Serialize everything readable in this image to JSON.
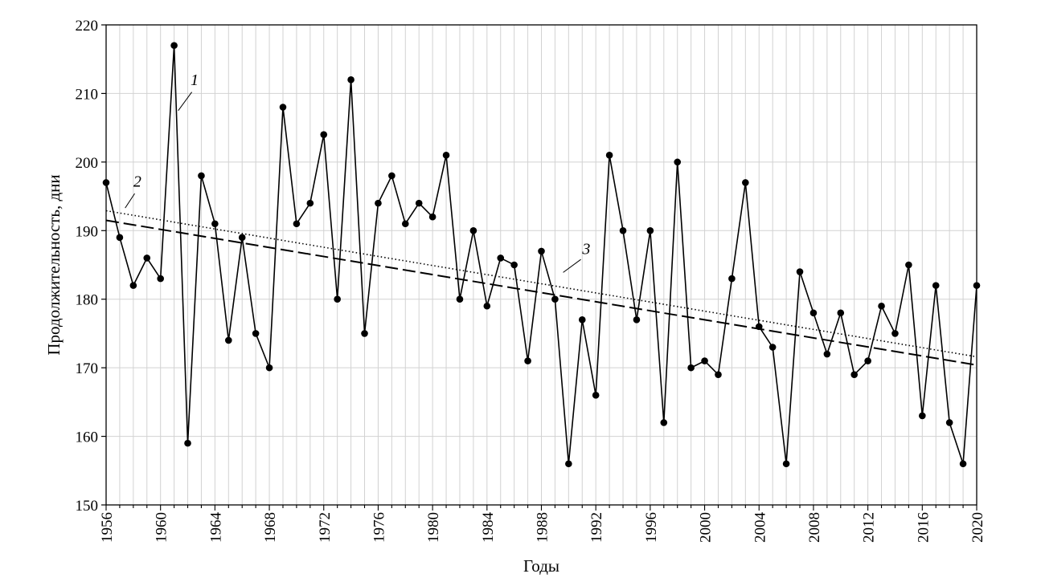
{
  "chart_data": {
    "type": "line",
    "xlabel": "Годы",
    "ylabel": "Продолжительность, дни",
    "xlim": [
      1956,
      2020
    ],
    "ylim": [
      150,
      220
    ],
    "x_ticks": [
      1956,
      1960,
      1964,
      1968,
      1972,
      1976,
      1980,
      1984,
      1988,
      1992,
      1996,
      2000,
      2004,
      2008,
      2012,
      2016,
      2020
    ],
    "y_ticks": [
      150,
      160,
      170,
      180,
      190,
      200,
      210,
      220
    ],
    "grid": true,
    "x": [
      1956,
      1957,
      1958,
      1959,
      1960,
      1961,
      1962,
      1963,
      1964,
      1965,
      1966,
      1967,
      1968,
      1969,
      1970,
      1971,
      1972,
      1973,
      1974,
      1975,
      1976,
      1977,
      1978,
      1979,
      1980,
      1981,
      1982,
      1983,
      1984,
      1985,
      1986,
      1987,
      1988,
      1989,
      1990,
      1991,
      1992,
      1993,
      1994,
      1995,
      1996,
      1997,
      1998,
      1999,
      2000,
      2001,
      2002,
      2003,
      2004,
      2005,
      2006,
      2007,
      2008,
      2009,
      2010,
      2011,
      2012,
      2013,
      2014,
      2015,
      2016,
      2017,
      2018,
      2019,
      2020
    ],
    "series": [
      {
        "label": "1",
        "style": "solid-with-markers",
        "values": [
          197,
          189,
          182,
          186,
          183,
          217,
          159,
          198,
          191,
          174,
          189,
          175,
          170,
          208,
          191,
          194,
          204,
          180,
          212,
          175,
          194,
          198,
          191,
          194,
          192,
          201,
          180,
          190,
          179,
          186,
          185,
          171,
          187,
          180,
          156,
          177,
          166,
          201,
          190,
          177,
          190,
          162,
          200,
          170,
          171,
          169,
          183,
          197,
          176,
          173,
          156,
          184,
          178,
          172,
          178,
          169,
          171,
          179,
          175,
          185,
          163,
          182,
          162,
          156,
          182
        ]
      },
      {
        "label": "2",
        "style": "dotted",
        "values": [
          192.9,
          171.6
        ],
        "x": [
          1956,
          2020
        ]
      },
      {
        "label": "3",
        "style": "dashed",
        "values": [
          191.5,
          170.4
        ],
        "x": [
          1956,
          2020
        ]
      }
    ],
    "annotations": [
      "1",
      "2",
      "3"
    ]
  }
}
